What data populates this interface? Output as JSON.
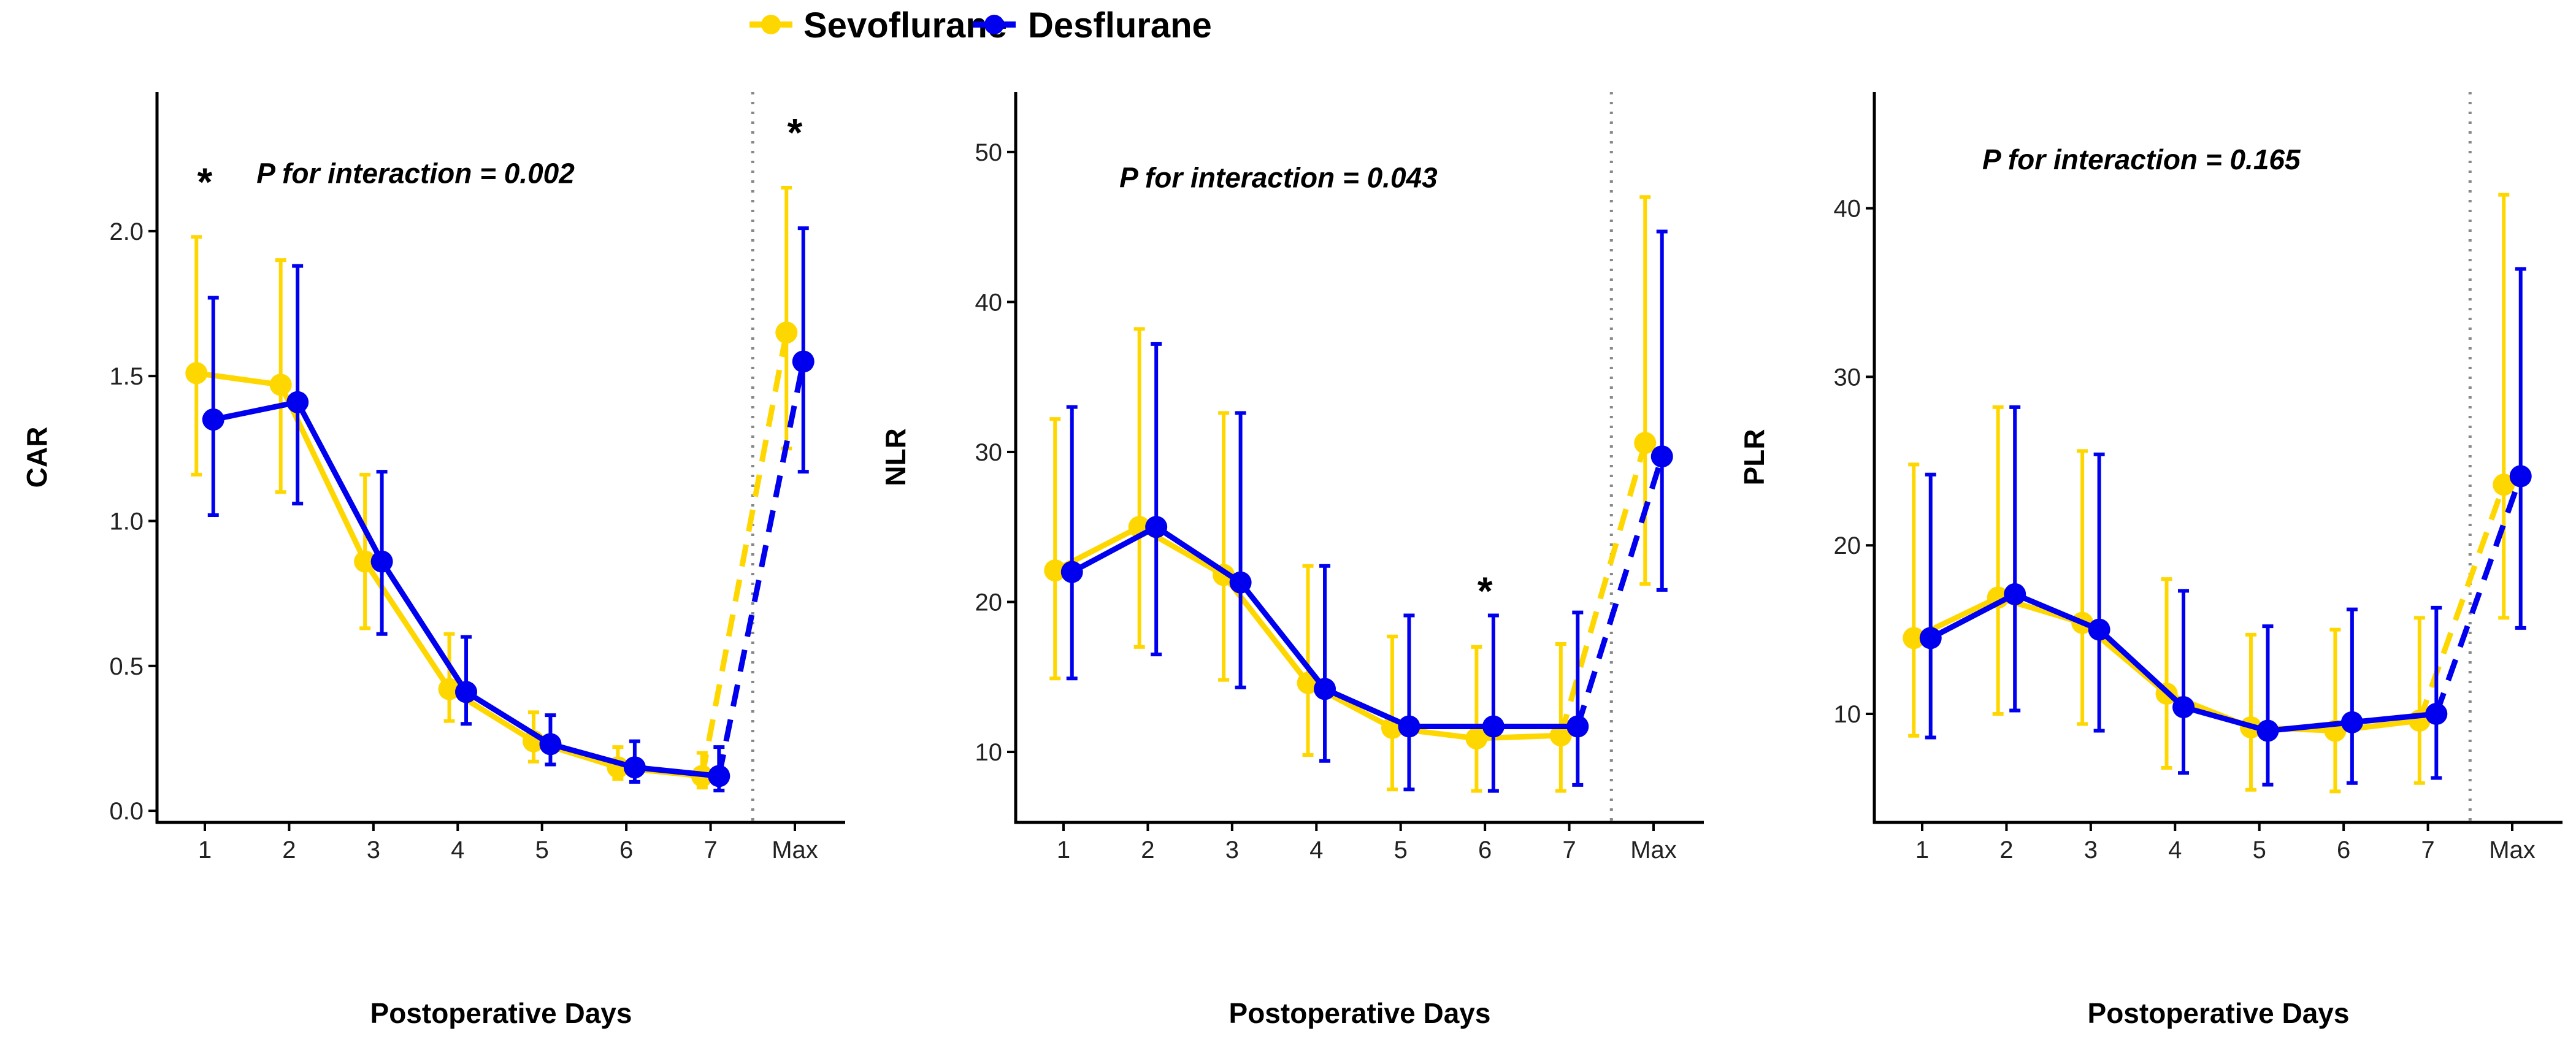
{
  "legend": {
    "items": [
      {
        "label": "Sevoflurane",
        "color": "#FFD700"
      },
      {
        "label": "Desflurane",
        "color": "#0000EE"
      }
    ]
  },
  "chart_data": [
    {
      "type": "line",
      "title": "",
      "xlabel": "Postoperative Days",
      "ylabel": "CAR",
      "categories": [
        "1",
        "2",
        "3",
        "4",
        "5",
        "6",
        "7",
        "Max"
      ],
      "ylim": [
        -0.04,
        2.48
      ],
      "yticks": [
        0.0,
        0.5,
        1.0,
        1.5,
        2.0
      ],
      "ytick_labels": [
        "0.0",
        "0.5",
        "1.0",
        "1.5",
        "2.0"
      ],
      "grid": false,
      "series": [
        {
          "name": "Sevoflurane",
          "values": [
            1.51,
            1.47,
            0.86,
            0.42,
            0.24,
            0.15,
            0.12,
            1.65
          ],
          "lower": [
            1.16,
            1.1,
            0.63,
            0.31,
            0.17,
            0.11,
            0.08,
            1.25
          ],
          "upper": [
            1.98,
            1.9,
            1.16,
            0.61,
            0.34,
            0.22,
            0.2,
            2.15
          ]
        },
        {
          "name": "Desflurane",
          "values": [
            1.35,
            1.41,
            0.86,
            0.41,
            0.23,
            0.15,
            0.12,
            1.55
          ],
          "lower": [
            1.02,
            1.06,
            0.61,
            0.3,
            0.16,
            0.1,
            0.07,
            1.17
          ],
          "upper": [
            1.77,
            1.88,
            1.17,
            0.6,
            0.33,
            0.24,
            0.22,
            2.01
          ]
        }
      ],
      "annotations": [
        {
          "text": "P for interaction = 0.002",
          "x": 3.5,
          "y": 2.2
        },
        {
          "text": "*",
          "x": 1,
          "y": 2.2
        },
        {
          "text": "*",
          "x": 8,
          "y": 2.37
        }
      ]
    },
    {
      "type": "line",
      "title": "",
      "xlabel": "Postoperative Days",
      "ylabel": "NLR",
      "categories": [
        "1",
        "2",
        "3",
        "4",
        "5",
        "6",
        "7",
        "Max"
      ],
      "ylim": [
        5.3,
        54.0
      ],
      "yticks": [
        10,
        20,
        30,
        40,
        50
      ],
      "ytick_labels": [
        "10",
        "20",
        "30",
        "40",
        "50"
      ],
      "grid": false,
      "series": [
        {
          "name": "Sevoflurane",
          "values": [
            22.1,
            25.0,
            21.8,
            14.6,
            11.6,
            10.9,
            11.1,
            30.6
          ],
          "lower": [
            14.9,
            17.0,
            14.8,
            9.8,
            7.5,
            7.4,
            7.4,
            21.2
          ],
          "upper": [
            32.2,
            38.2,
            32.6,
            22.4,
            17.7,
            17.0,
            17.2,
            47.0
          ]
        },
        {
          "name": "Desflurane",
          "values": [
            22.0,
            25.0,
            21.3,
            14.2,
            11.7,
            11.7,
            11.7,
            29.7
          ],
          "lower": [
            14.9,
            16.5,
            14.3,
            9.4,
            7.5,
            7.4,
            7.8,
            20.8
          ],
          "upper": [
            33.0,
            37.2,
            32.6,
            22.4,
            19.1,
            19.1,
            19.3,
            44.7
          ]
        }
      ],
      "annotations": [
        {
          "text": "P for interaction = 0.043",
          "x": 3.55,
          "y": 48.3
        },
        {
          "text": "*",
          "x": 6,
          "y": 21.3
        }
      ]
    },
    {
      "type": "line",
      "title": "",
      "xlabel": "Postoperative Days",
      "ylabel": "PLR",
      "categories": [
        "1",
        "2",
        "3",
        "4",
        "5",
        "6",
        "7",
        "Max"
      ],
      "ylim": [
        3.56,
        46.9
      ],
      "yticks": [
        10,
        20,
        30,
        40
      ],
      "ytick_labels": [
        "10",
        "20",
        "30",
        "40"
      ],
      "grid": false,
      "series": [
        {
          "name": "Sevoflurane",
          "values": [
            14.5,
            16.9,
            15.4,
            11.2,
            9.2,
            9.0,
            9.6,
            23.6
          ],
          "lower": [
            8.7,
            10.0,
            9.4,
            6.8,
            5.5,
            5.4,
            5.9,
            15.7
          ],
          "upper": [
            24.8,
            28.2,
            25.6,
            18.0,
            14.7,
            15.0,
            15.7,
            40.8
          ]
        },
        {
          "name": "Desflurane",
          "values": [
            14.5,
            17.1,
            15.0,
            10.4,
            9.0,
            9.5,
            10.0,
            24.1
          ],
          "lower": [
            8.6,
            10.2,
            9.0,
            6.5,
            5.8,
            5.9,
            6.2,
            15.1
          ],
          "upper": [
            24.2,
            28.2,
            25.4,
            17.3,
            15.2,
            16.2,
            16.3,
            36.4
          ]
        }
      ],
      "annotations": [
        {
          "text": "P for interaction = 0.165",
          "x": 3.6,
          "y": 42.9
        }
      ]
    }
  ]
}
